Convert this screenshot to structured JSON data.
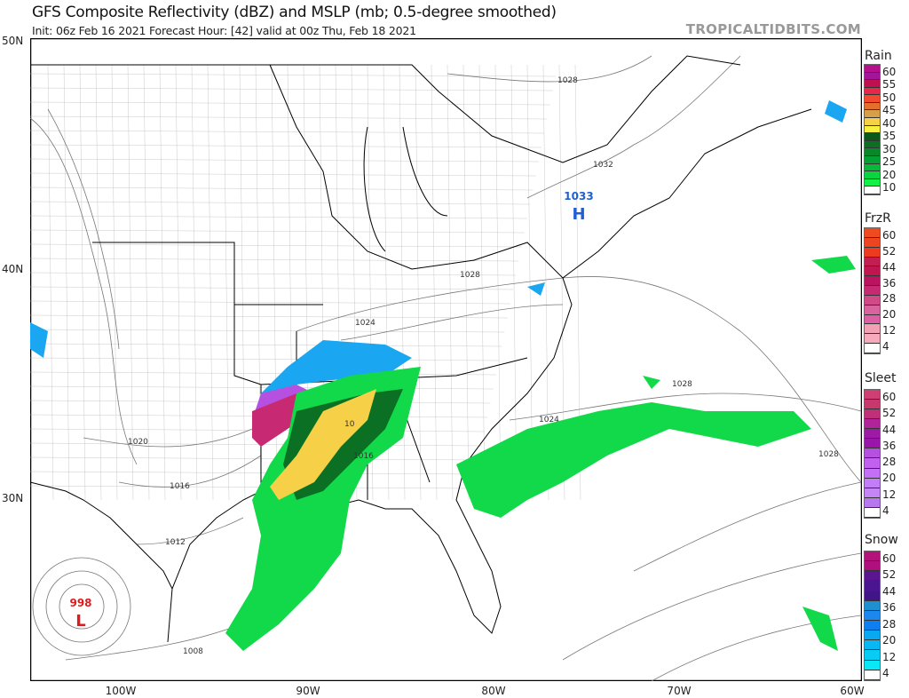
{
  "header": {
    "title": "GFS Composite Reflectivity (dBZ) and MSLP (mb; 0.5-degree smoothed)",
    "subtitle": "Init: 06z Feb 16 2021   Forecast Hour: [42]   valid at 00z Thu, Feb 18 2021",
    "brand": "TROPICALTIDBITS.COM"
  },
  "axes": {
    "lat_labels": [
      "50N",
      "40N",
      "30N"
    ],
    "lon_labels": [
      "100W",
      "90W",
      "80W",
      "70W",
      "60W"
    ]
  },
  "pressure_labels": [
    {
      "text": "1028"
    },
    {
      "text": "1032"
    },
    {
      "text": "1028"
    },
    {
      "text": "1024"
    },
    {
      "text": "1028"
    },
    {
      "text": "1024"
    },
    {
      "text": "1028"
    },
    {
      "text": "1020"
    },
    {
      "text": "1016"
    },
    {
      "text": "1016"
    },
    {
      "text": "1012"
    },
    {
      "text": "1008"
    },
    {
      "text": "10"
    }
  ],
  "centers": {
    "high": {
      "value": "1033",
      "letter": "H",
      "color": "#1f5fd6"
    },
    "low": {
      "value": "998",
      "letter": "L",
      "color": "#d81e1e"
    }
  },
  "legends": [
    {
      "title": "Rain",
      "labels": [
        "60",
        "55",
        "50",
        "45",
        "40",
        "35",
        "30",
        "25",
        "20",
        "10"
      ],
      "colors": [
        "#b5118f",
        "#a3169a",
        "#c0104f",
        "#e8284a",
        "#f34a2e",
        "#e46f2d",
        "#d69f49",
        "#f6d046",
        "#f8f03e",
        "#0c5a1b",
        "#0b7023",
        "#08882b",
        "#05a033",
        "#08b839",
        "#0ad540",
        "#12f04a",
        "#ffffff"
      ]
    },
    {
      "title": "FrzR",
      "labels": [
        "60",
        "52",
        "44",
        "36",
        "28",
        "20",
        "12",
        "4"
      ],
      "colors": [
        "#ef4a20",
        "#ef4420",
        "#ee3a1e",
        "#c31e52",
        "#c11550",
        "#ba1360",
        "#c72a73",
        "#d04a88",
        "#d8639e",
        "#dc5fa6",
        "#f2a0b4",
        "#f6aabb",
        "#ffffff"
      ]
    },
    {
      "title": "Sleet",
      "labels": [
        "60",
        "52",
        "44",
        "36",
        "28",
        "20",
        "12",
        "4"
      ],
      "colors": [
        "#cf3f74",
        "#c8386c",
        "#c03078",
        "#b1239b",
        "#9d1aa5",
        "#9a16ab",
        "#b650e0",
        "#c260f0",
        "#c470f6",
        "#c27ef7",
        "#c585f7",
        "#b977ef",
        "#ffffff"
      ]
    },
    {
      "title": "Snow",
      "labels": [
        "60",
        "52",
        "44",
        "36",
        "28",
        "20",
        "12",
        "4"
      ],
      "colors": [
        "#b6137a",
        "#b0107e",
        "#5a1690",
        "#4b1490",
        "#401588",
        "#1e8fd0",
        "#1a88ee",
        "#0d7ff2",
        "#0aa8f0",
        "#08b8f2",
        "#08ccf4",
        "#0ae8f8",
        "#ffffff"
      ]
    }
  ]
}
